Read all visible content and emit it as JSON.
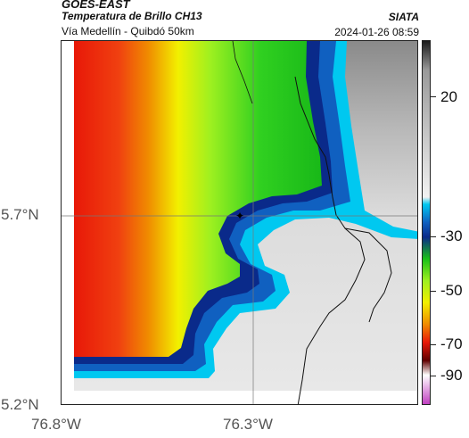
{
  "header": {
    "source": "GOES-EAST",
    "product": "Temperatura de Brillo CH13",
    "region": "Vía Medellín - Quibdó 50km",
    "organization": "SIATA",
    "timestamp": "2024-01-26 08:59"
  },
  "map": {
    "lat_labels": [
      "5.7°N",
      "5.2°N"
    ],
    "lon_labels": [
      "76.8°W",
      "76.3°W"
    ],
    "gridlines": true
  },
  "colorbar": {
    "tick_labels": [
      "20",
      "-30",
      "-50",
      "-70",
      "-90"
    ],
    "colors": {
      "gray_warm": "#1a1a1a",
      "gray_light": "#f2f2f2",
      "cyan": "#00c8f0",
      "blue": "#1060c0",
      "navy": "#0a2a8a",
      "green": "#18c018",
      "lime": "#9ef020",
      "yellow": "#f2f000",
      "orange": "#f08c00",
      "red": "#e81808",
      "darkred": "#600000",
      "magenta": "#c040c0"
    }
  }
}
